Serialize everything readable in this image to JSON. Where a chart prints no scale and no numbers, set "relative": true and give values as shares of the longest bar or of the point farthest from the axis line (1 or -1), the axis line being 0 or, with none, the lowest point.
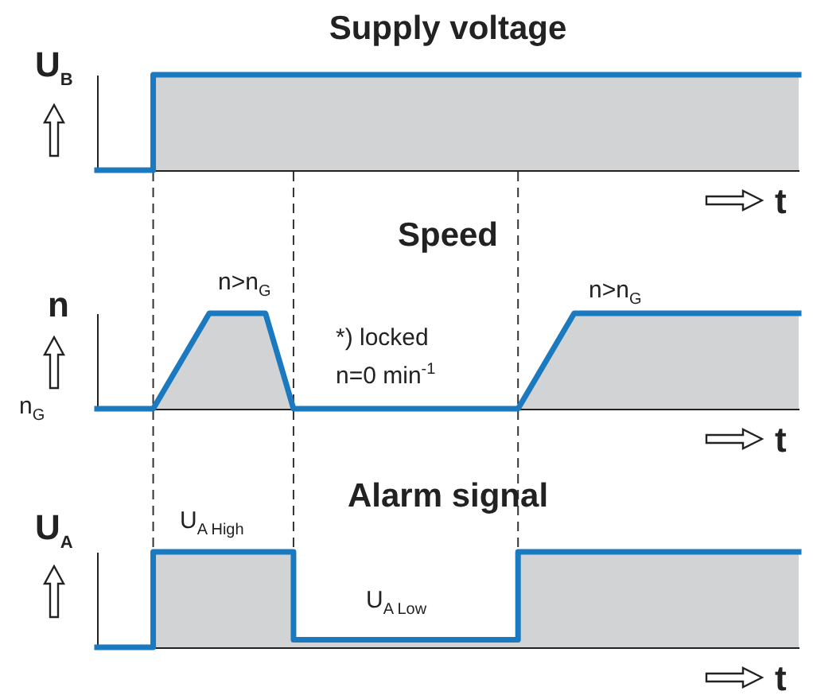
{
  "chart_data": [
    {
      "type": "step",
      "title": "Supply voltage",
      "ylabel": "U$_{B}$",
      "xlabel": "t",
      "relative": true,
      "categories": [
        null,
        null,
        null,
        null,
        null,
        null,
        null,
        null,
        null,
        null,
        null,
        null,
        null,
        null,
        null,
        null,
        null,
        null,
        null,
        null,
        null,
        null,
        null,
        null,
        null,
        null
      ],
      "series": [
        {
          "color": "#1b79c0",
          "values": [
            0,
            0,
            1,
            1,
            1,
            1,
            1,
            1,
            1,
            1,
            1,
            1,
            1,
            1,
            1,
            1,
            1,
            1,
            1,
            1,
            1,
            1,
            1,
            1,
            1,
            1
          ]
        }
      ]
    },
    {
      "type": "area",
      "title": "Speed",
      "ylabel": "n",
      "xlabel": "t",
      "relative": true,
      "categories": [
        null,
        null,
        null,
        null,
        null,
        null,
        null,
        null,
        null,
        null,
        null,
        null,
        null,
        null,
        null,
        null,
        null,
        null,
        null,
        null,
        null,
        null,
        null,
        null,
        null,
        null
      ],
      "series": [
        {
          "color": "#1b79c0",
          "values": [
            0,
            0,
            0,
            0.5,
            1,
            1,
            1,
            0,
            0,
            0,
            0,
            0,
            0,
            0,
            0,
            0,
            0.5,
            1,
            1,
            1,
            1,
            1,
            1,
            1,
            1,
            1
          ]
        }
      ],
      "annotations": [
        "n>n$_{G}$",
        "*) locked",
        "n=0 min$^{-1}$",
        "n>n$_{G}$",
        "n$_{G}$"
      ],
      "grid": "x"
    },
    {
      "type": "step",
      "title": "Alarm signal",
      "ylabel": "U$_{A}$",
      "xlabel": "t",
      "relative": true,
      "categories": [
        null,
        null,
        null,
        null,
        null,
        null,
        null,
        null,
        null,
        null,
        null,
        null,
        null,
        null,
        null,
        null,
        null,
        null,
        null,
        null,
        null,
        null,
        null,
        null,
        null,
        null
      ],
      "series": [
        {
          "color": "#1b79c0",
          "values": [
            0,
            0,
            1,
            1,
            1,
            1,
            1,
            0.08,
            0.08,
            0.08,
            0.08,
            0.08,
            0.08,
            0.08,
            0.08,
            1,
            1,
            1,
            1,
            1,
            1,
            1,
            1,
            1,
            1,
            1
          ]
        }
      ],
      "annotations": [
        "U$_{A High}$",
        "U$_{A Low}$"
      ]
    }
  ]
}
